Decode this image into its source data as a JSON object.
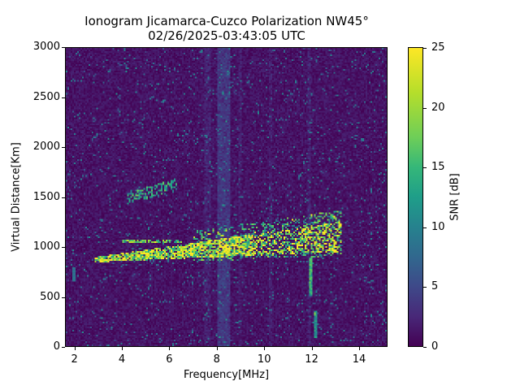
{
  "chart_data": {
    "type": "heatmap",
    "title": "Ionogram Jicamarca-Cuzco Polarization NW45°",
    "subtitle": "02/26/2025-03:43:05 UTC",
    "xlabel": "Frequency[MHz]",
    "ylabel": "Virtual Distance[Km]",
    "xlim": [
      1.6,
      15.2
    ],
    "ylim": [
      0,
      3000
    ],
    "x_ticks": [
      "2",
      "4",
      "6",
      "8",
      "10",
      "12",
      "14"
    ],
    "y_ticks": [
      "0",
      "500",
      "1000",
      "1500",
      "2000",
      "2500",
      "3000"
    ],
    "colorbar": {
      "label": "SNR [dB]",
      "range": [
        0,
        25
      ],
      "ticks": [
        "0",
        "5",
        "10",
        "15",
        "20",
        "25"
      ],
      "colormap": "viridis"
    },
    "features": [
      {
        "name": "main trace",
        "freq_start_mhz": 2.8,
        "freq_end_mhz": 13.2,
        "distance_start_km": 850,
        "distance_end_km": 1100,
        "snr_db": "15-25"
      },
      {
        "name": "upper branch",
        "freq_start_mhz": 4.0,
        "freq_end_mhz": 6.5,
        "distance_km": 1060,
        "snr_db": "15-25"
      },
      {
        "name": "second hop echo",
        "freq_start_mhz": 4.2,
        "freq_end_mhz": 6.3,
        "distance_start_km": 1450,
        "distance_end_km": 1650,
        "snr_db": "8-18"
      },
      {
        "name": "interference band",
        "freq_mhz": 8.3,
        "snr_db": "3-6"
      },
      {
        "name": "interference line",
        "freq_mhz": 12.0,
        "distance_start_km": 500,
        "distance_end_km": 900,
        "snr_db": "10-20"
      }
    ],
    "grid": false,
    "legend_position": "colorbar right"
  }
}
